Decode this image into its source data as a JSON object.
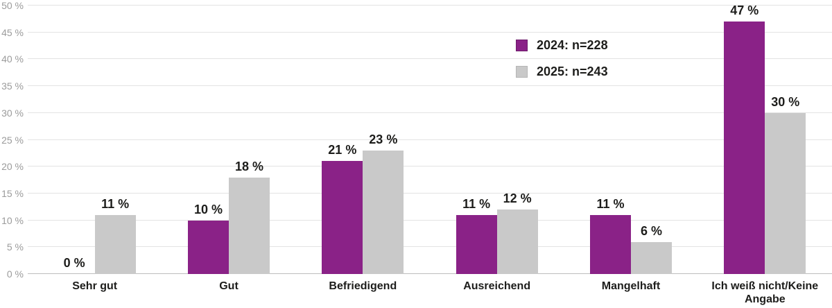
{
  "chart_data": {
    "type": "bar",
    "title": "",
    "xlabel": "",
    "ylabel": "",
    "categories": [
      "Sehr gut",
      "Gut",
      "Befriedigend",
      "Ausreichend",
      "Mangelhaft",
      "Ich weiß nicht/Keine Angabe"
    ],
    "series": [
      {
        "name": "2024: n=228",
        "color": "#8a2287",
        "border": "#6e1b6b",
        "values": [
          0,
          10,
          21,
          11,
          11,
          47
        ]
      },
      {
        "name": "2025: n=243",
        "color": "#c9c9c9",
        "border": "#b5b5b5",
        "values": [
          11,
          18,
          23,
          12,
          6,
          30
        ]
      }
    ],
    "value_labels": [
      [
        "0 %",
        "10 %",
        "21 %",
        "11 %",
        "11 %",
        "47 %"
      ],
      [
        "11 %",
        "18 %",
        "23 %",
        "12 %",
        "6 %",
        "30 %"
      ]
    ],
    "ylim": [
      0,
      50
    ],
    "ytick_step": 5,
    "ytick_labels": [
      "0 %",
      "5 %",
      "10 %",
      "15 %",
      "20 %",
      "25 %",
      "30 %",
      "35 %",
      "40 %",
      "45 %",
      "50 %"
    ],
    "grid": true,
    "legend_position": "top-right"
  },
  "colors": {
    "background": "#ffffff",
    "gridline": "#e3e3e3",
    "baseline": "#bdbdbd",
    "ytick_text": "#9b9b9b",
    "label_text": "#1d1d1b",
    "series_2024": "#8a2287",
    "series_2025": "#c9c9c9"
  }
}
